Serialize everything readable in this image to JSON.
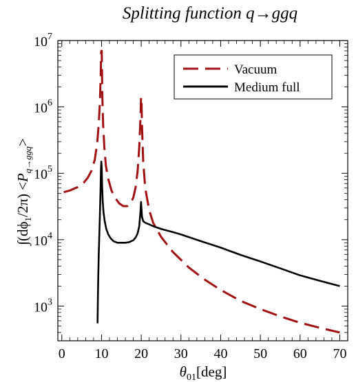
{
  "chart_data": {
    "type": "line",
    "title": "Splitting function q→ggq",
    "xlabel_prefix": "θ",
    "xlabel_sub": "01",
    "xlabel_unit": "[deg]",
    "ylabel": "∫(dϕ₁/2π) <P_{q→ggq}>",
    "ylabel_parts": [
      "∫(dϕ",
      "1",
      "/2π) <",
      "P",
      "q→ggq",
      ">"
    ],
    "xlim": [
      -1,
      72
    ],
    "ylim": [
      300,
      10000000
    ],
    "yscale": "log",
    "grid": false,
    "legend_position": "top-right",
    "x_ticks": [
      {
        "value": 0,
        "label": "0"
      },
      {
        "value": 10,
        "label": "10"
      },
      {
        "value": 20,
        "label": "20"
      },
      {
        "value": 30,
        "label": "30"
      },
      {
        "value": 40,
        "label": "40"
      },
      {
        "value": 50,
        "label": "50"
      },
      {
        "value": 60,
        "label": "60"
      },
      {
        "value": 70,
        "label": "70"
      }
    ],
    "y_ticks": [
      {
        "value": 1000,
        "mantissa": "10",
        "exponent": "3"
      },
      {
        "value": 10000,
        "mantissa": "10",
        "exponent": "4"
      },
      {
        "value": 100000,
        "mantissa": "10",
        "exponent": "5"
      },
      {
        "value": 1000000,
        "mantissa": "10",
        "exponent": "6"
      },
      {
        "value": 10000000,
        "mantissa": "10",
        "exponent": "7"
      }
    ],
    "series": [
      {
        "name": "Vacuum",
        "color": "#a01010",
        "dash": "dashed",
        "x": [
          0.5,
          2,
          4,
          5.5,
          6.5,
          7.5,
          8.3,
          8.9,
          9.3,
          9.6,
          9.8,
          9.9,
          9.95,
          10.05,
          10.1,
          10.2,
          10.4,
          10.7,
          11.1,
          11.7,
          12.5,
          13.5,
          14.5,
          15.5,
          16.5,
          17.3,
          18.0,
          18.6,
          19.1,
          19.5,
          19.8,
          19.95,
          20.05,
          20.2,
          20.5,
          21,
          22,
          23,
          25,
          28,
          32,
          36,
          40,
          45,
          50,
          55,
          60,
          65,
          70
        ],
        "y": [
          52000,
          55000,
          62000,
          72000,
          85000,
          110000,
          160000,
          280000,
          550000,
          1200000,
          3000000,
          6500000,
          7000000,
          7000000,
          4000000,
          1500000,
          550000,
          250000,
          130000,
          82000,
          55000,
          42000,
          35000,
          32000,
          32000,
          35000,
          43000,
          62000,
          110000,
          250000,
          650000,
          1400000,
          1400000,
          500000,
          150000,
          60000,
          28000,
          18000,
          11000,
          6500,
          3800,
          2500,
          1750,
          1200,
          900,
          700,
          560,
          470,
          400
        ]
      },
      {
        "name": "Medium full",
        "color": "#000000",
        "dash": "solid",
        "x": [
          9.0,
          9.1,
          9.2,
          9.3,
          9.45,
          9.6,
          9.75,
          9.85,
          9.95,
          10.05,
          10.15,
          10.3,
          10.5,
          10.8,
          11.2,
          11.7,
          12.3,
          13,
          14,
          15,
          16,
          17,
          18,
          18.6,
          19.1,
          19.5,
          19.8,
          19.95,
          20.05,
          20.2,
          20.5,
          21,
          22,
          23,
          25,
          28,
          30,
          35,
          40,
          45,
          50,
          55,
          60,
          65,
          70
        ],
        "y": [
          550,
          1500,
          3200,
          6000,
          12000,
          25000,
          55000,
          110000,
          150000,
          120000,
          65000,
          38000,
          26000,
          19000,
          14500,
          12000,
          10500,
          9500,
          9000,
          9000,
          9000,
          9200,
          9800,
          10800,
          12500,
          16000,
          26000,
          37000,
          30000,
          22000,
          19000,
          18000,
          17000,
          16000,
          14500,
          13000,
          12000,
          9500,
          7600,
          5900,
          4700,
          3700,
          2900,
          2400,
          2000
        ]
      }
    ]
  }
}
